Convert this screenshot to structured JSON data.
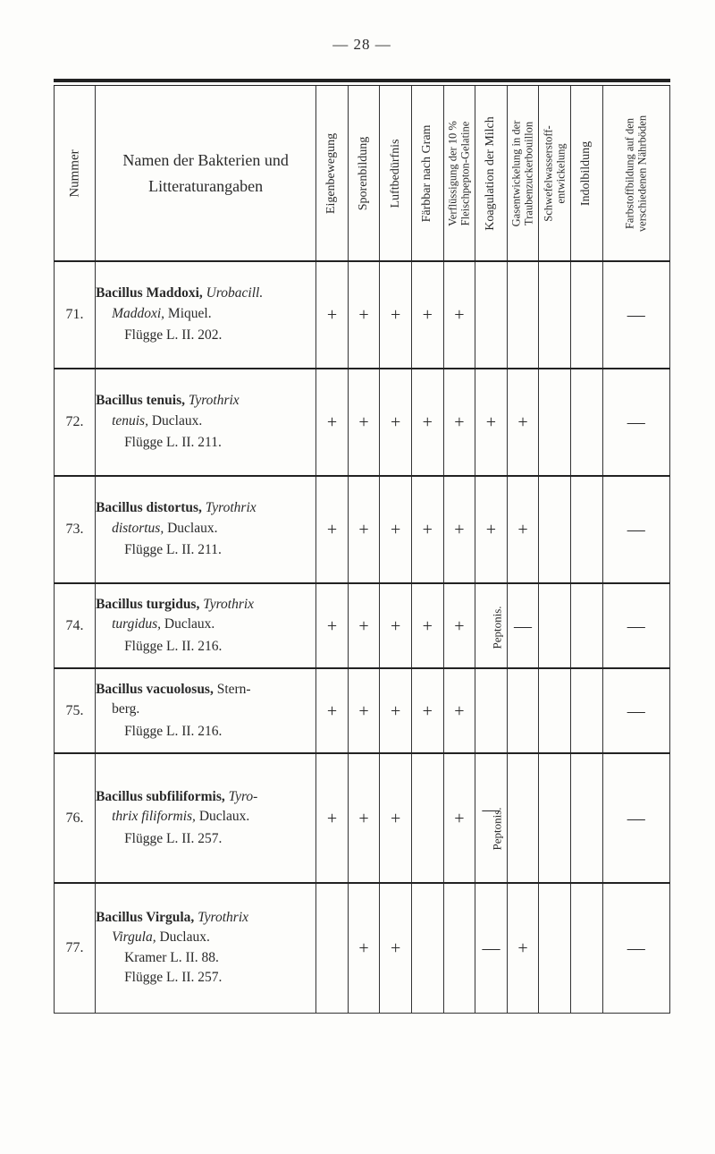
{
  "page_number_display": "— 28 —",
  "header": {
    "num": "Nummer",
    "name_line1": "Namen der Bakterien und",
    "name_line2": "Litteraturangaben",
    "cols": [
      "Eigenbewegung",
      "Sporenbildung",
      "Luftbedürfnis",
      "Färbbar nach Gram",
      "Verflüssigung der 10 %\nFleischpepton-Gelatine",
      "Koagulation der Milch",
      "Gasentwickelung in der\nTraubenzuckerbouillon",
      "Schwefelwasserstoff-\nentwickelung",
      "Indolbildung",
      "Farbstoffbildung auf den\nverschiedenen Nährböden"
    ]
  },
  "rows": [
    {
      "num": "71.",
      "name_html": "<span class=\"title\"><b>Bacillus Maddoxi,</b> <span class=\"ital\">Urobacill.</span></span><br><span class=\"ital\" style=\"padding-left:18px\">Maddoxi,</span> Miquel.<span class=\"ref\">Flügge L. II. 202.</span>",
      "cells": [
        "+",
        "+",
        "+",
        "+",
        "+",
        "",
        "",
        "",
        "",
        "—"
      ]
    },
    {
      "num": "72.",
      "name_html": "<span class=\"title\"><b>Bacillus tenuis,</b> <span class=\"ital\">Tyrothrix</span></span><br><span class=\"ital\" style=\"padding-left:18px\">tenuis,</span> Duclaux.<span class=\"ref\">Flügge L. II. 211.</span>",
      "cells": [
        "+",
        "+",
        "+",
        "+",
        "+",
        "+",
        "+",
        "",
        "",
        "—"
      ]
    },
    {
      "num": "73.",
      "name_html": "<span class=\"title\"><b>Bacillus distortus,</b> <span class=\"ital\">Tyrothrix</span></span><br><span class=\"ital\" style=\"padding-left:18px\">distortus,</span> Duclaux.<span class=\"ref\">Flügge L. II. 211.</span>",
      "cells": [
        "+",
        "+",
        "+",
        "+",
        "+",
        "+",
        "+",
        "",
        "",
        "—"
      ]
    },
    {
      "num": "74.",
      "name_html": "<span class=\"title\"><b>Bacillus turgidus,</b> <span class=\"ital\">Tyrothrix</span></span><br><span class=\"ital\" style=\"padding-left:18px\">turgidus,</span> Duclaux.<span class=\"ref\">Flügge L. II. 216.</span>",
      "cells": [
        "+",
        "+",
        "+",
        "+",
        "+",
        "<span class=\"pepto\">Peptonis.</span>",
        "—",
        "",
        "",
        "—"
      ]
    },
    {
      "num": "75.",
      "name_html": "<span class=\"title\"><b>Bacillus vacuolosus,</b> Stern-</span><br><span style=\"padding-left:18px\">berg.</span><span class=\"ref\">Flügge L. II. 216.</span>",
      "cells": [
        "+",
        "+",
        "+",
        "+",
        "+",
        "",
        "",
        "",
        "",
        "—"
      ]
    },
    {
      "num": "76.",
      "name_html": "<span class=\"title\"><b>Bacillus subfiliformis,</b> <span class=\"ital\">Tyro-</span></span><br><span class=\"ital\" style=\"padding-left:18px\">thrix filiformis,</span> Duclaux.<span class=\"ref\">Flügge L. II. 257.</span>",
      "cells": [
        "+",
        "+",
        "+",
        "",
        "+",
        "—<br><span class=\"pepto\">Peptonis.</span>",
        "",
        "",
        "",
        "—"
      ]
    },
    {
      "num": "77.",
      "name_html": "<span class=\"title\"><b>Bacillus Virgula,</b> <span class=\"ital\">Tyrothrix</span></span><br><span class=\"ital\" style=\"padding-left:18px\">Virgula,</span> Duclaux.<br><span style=\"padding-left:32px\">Kramer L. II. 88.</span><br><span style=\"padding-left:32px\">Flügge L. II. 257.</span>",
      "cells": [
        "",
        "+",
        "+",
        "",
        "",
        "—",
        "+",
        "",
        "",
        "—"
      ]
    }
  ]
}
